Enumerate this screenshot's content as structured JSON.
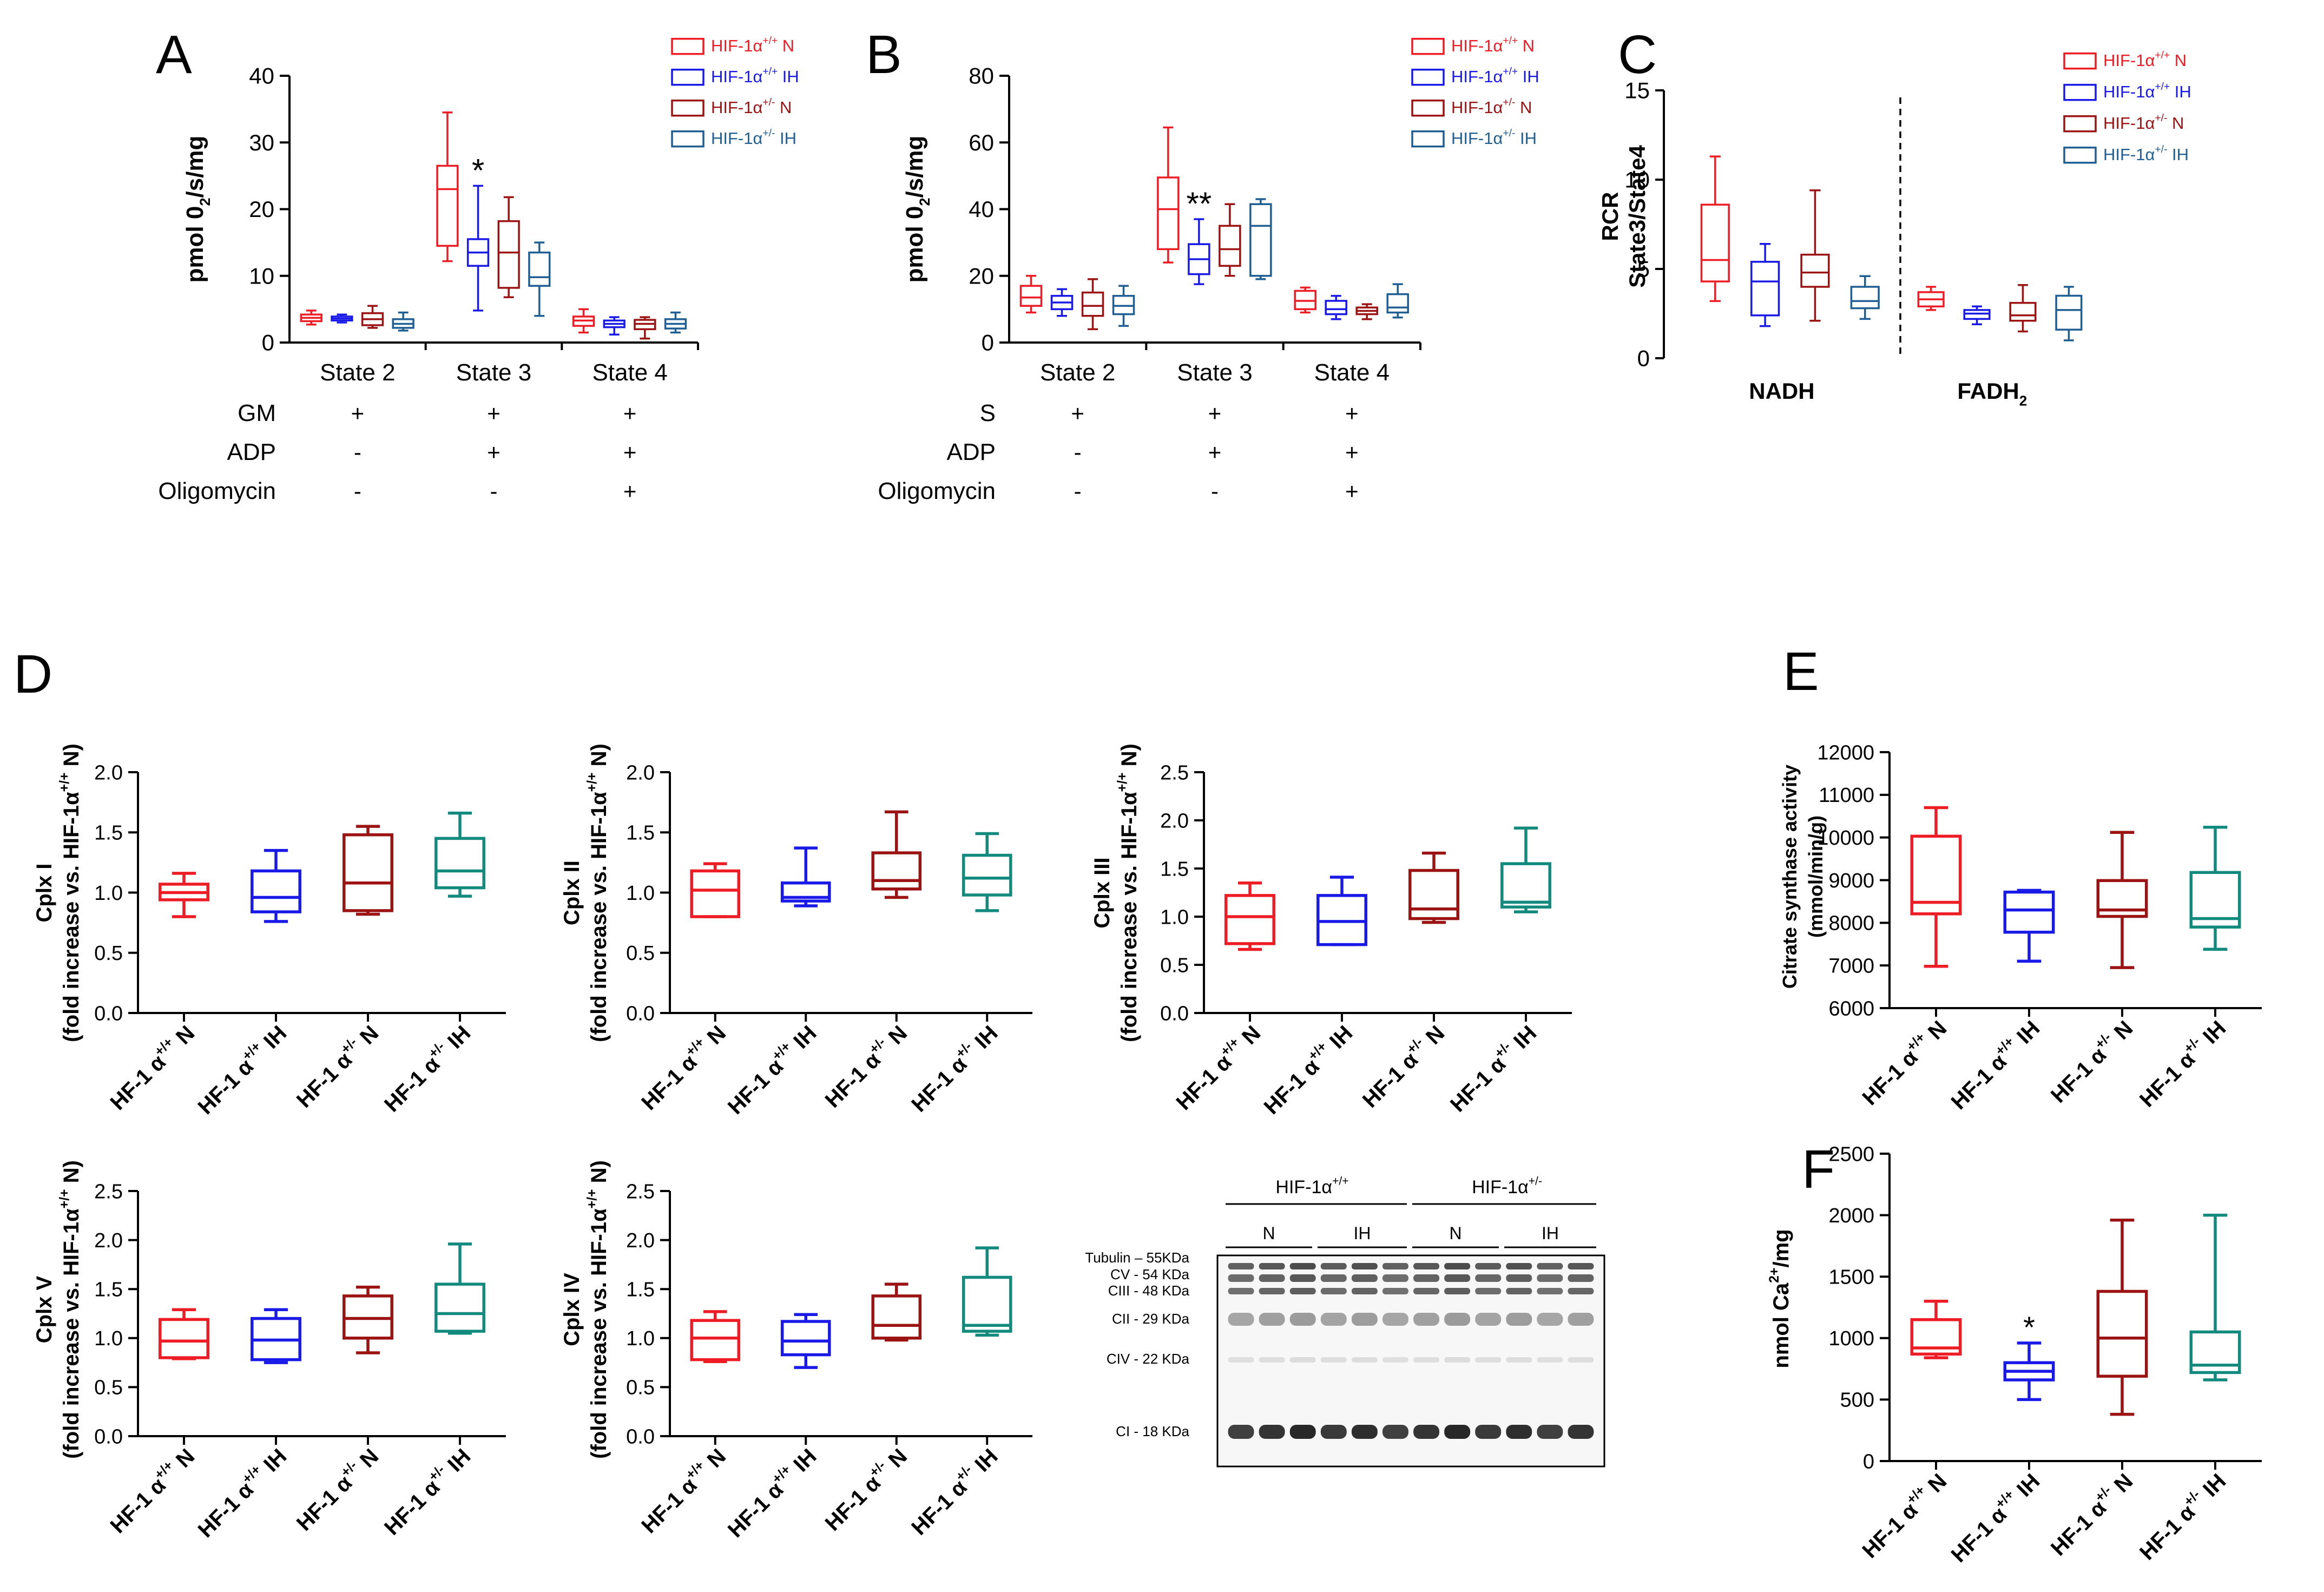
{
  "colors": {
    "wt_n": "#ee1c24",
    "wt_ih": "#1a1ae8",
    "het_n": "#9b1313",
    "het_ih": "#1f5f94",
    "teal": "#128a7e",
    "axis": "#000000"
  },
  "legend_top": [
    "HIF-1α+/+ N",
    "HIF-1α+/+ IH",
    "HIF-1α+/- N",
    "HIF-1α+/- IH"
  ],
  "legend_top_parts": [
    [
      "HIF-1α",
      "+/+",
      " N"
    ],
    [
      "HIF-1α",
      "+/+",
      " IH"
    ],
    [
      "HIF-1α",
      "+/-",
      "  N"
    ],
    [
      "HIF-1α",
      "+/-",
      "  IH"
    ]
  ],
  "treat_A": {
    "rows": [
      {
        "label": "GM",
        "values": [
          "+",
          "+",
          "+"
        ]
      },
      {
        "label": "ADP",
        "values": [
          "-",
          "+",
          "+"
        ]
      },
      {
        "label": "Oligomycin",
        "values": [
          "-",
          "-",
          "+"
        ]
      }
    ]
  },
  "treat_B": {
    "rows": [
      {
        "label": "S",
        "values": [
          "+",
          "+",
          "+"
        ]
      },
      {
        "label": "ADP",
        "values": [
          "-",
          "+",
          "+"
        ]
      },
      {
        "label": "Oligomycin",
        "values": [
          "-",
          "-",
          "+"
        ]
      }
    ]
  },
  "lower_categories": [
    "HF-1  α+/+ N",
    "HF-1  α+/+ IH",
    "HF-1  α+/- N",
    "HF-1  α+/- IH"
  ],
  "lower_cat_parts": [
    [
      "HF-1  α",
      "+/+",
      " N"
    ],
    [
      "HF-1  α",
      "+/+",
      " IH"
    ],
    [
      "HF-1  α",
      "+/-",
      " N"
    ],
    [
      "HF-1  α",
      "+/-",
      " IH"
    ]
  ],
  "fold_ylabel": [
    "(fold increase vs. HIF-1α",
    "+/+",
    " N)"
  ],
  "western": {
    "header_groups": [
      [
        "HIF-1α",
        "+/+"
      ],
      [
        "HIF-1α",
        "+/-"
      ]
    ],
    "sublabels": [
      "N",
      "IH",
      "N",
      "IH"
    ],
    "bands": [
      "Tubulin – 55KDa",
      "CV - 54 KDa",
      "CIII - 48 KDa",
      "CII - 29 KDa",
      "CIV - 22 KDa",
      "CI - 18 KDa"
    ]
  },
  "chart_data": [
    {
      "panel": "A",
      "type": "box",
      "ylabel": "pmol 02/s/mg",
      "ylabel_parts": [
        "pmol 0",
        "2",
        "/s/mg"
      ],
      "ylim": [
        0,
        40
      ],
      "yticks": [
        0,
        10,
        20,
        30,
        40
      ],
      "categories": [
        "State 2",
        "State 3",
        "State 4"
      ],
      "annotations": [
        {
          "text": "*",
          "category": 1,
          "series": 1
        }
      ],
      "series": [
        {
          "name": "HIF-1α+/+ N",
          "color": "#ee1c24",
          "boxes": [
            [
              2.7,
              3.2,
              3.7,
              4.2,
              4.8
            ],
            [
              12.2,
              14.5,
              23,
              26.5,
              34.5
            ],
            [
              1.5,
              2.5,
              3.3,
              3.9,
              5
            ]
          ]
        },
        {
          "name": "HIF-1α+/+ IH",
          "color": "#1a1ae8",
          "boxes": [
            [
              3.0,
              3.3,
              3.6,
              3.9,
              4.2
            ],
            [
              4.8,
              11.5,
              13.5,
              15.5,
              23.5
            ],
            [
              1.2,
              2.3,
              2.8,
              3.3,
              3.8
            ]
          ]
        },
        {
          "name": "HIF-1α+/- N",
          "color": "#9b1313",
          "boxes": [
            [
              2.2,
              2.6,
              3.5,
              4.4,
              5.5
            ],
            [
              6.8,
              8.2,
              13.5,
              18.2,
              21.8
            ],
            [
              0.6,
              2.0,
              2.8,
              3.4,
              3.8
            ]
          ]
        },
        {
          "name": "HIF-1α+/- IH",
          "color": "#1f5f94",
          "boxes": [
            [
              1.8,
              2.2,
              2.8,
              3.5,
              4.5
            ],
            [
              4,
              8.5,
              9.8,
              13.5,
              15
            ],
            [
              1.5,
              2.1,
              2.8,
              3.5,
              4.5
            ]
          ]
        }
      ]
    },
    {
      "panel": "B",
      "type": "box",
      "ylabel": "pmol 02/s/mg",
      "ylabel_parts": [
        "pmol 0",
        "2",
        "/s/mg"
      ],
      "ylim": [
        0,
        80
      ],
      "yticks": [
        0,
        20,
        40,
        60,
        80
      ],
      "categories": [
        "State 2",
        "State 3",
        "State 4"
      ],
      "annotations": [
        {
          "text": "**",
          "category": 1,
          "series": 1
        }
      ],
      "series": [
        {
          "name": "HIF-1α+/+ N",
          "color": "#ee1c24",
          "boxes": [
            [
              9,
              11,
              13.5,
              17,
              20
            ],
            [
              24,
              28,
              40,
              49.5,
              64.5
            ],
            [
              9,
              10,
              12.5,
              15.5,
              16.5
            ]
          ]
        },
        {
          "name": "HIF-1α+/+ IH",
          "color": "#1a1ae8",
          "boxes": [
            [
              8,
              10,
              12,
              14,
              16
            ],
            [
              17.5,
              20.5,
              25,
              29.5,
              37
            ],
            [
              7,
              8.5,
              10,
              12.5,
              14
            ]
          ]
        },
        {
          "name": "HIF-1α+/- N",
          "color": "#9b1313",
          "boxes": [
            [
              4,
              8,
              11,
              15,
              19
            ],
            [
              20,
              23,
              28,
              35,
              41.5
            ],
            [
              7,
              8.5,
              9.5,
              10.5,
              11.5
            ]
          ]
        },
        {
          "name": "HIF-1α+/- IH",
          "color": "#1f5f94",
          "boxes": [
            [
              5,
              8.5,
              11,
              14,
              17
            ],
            [
              19,
              20,
              35,
              41.5,
              43
            ],
            [
              7.5,
              9,
              10.5,
              14.5,
              17.5
            ]
          ]
        }
      ]
    },
    {
      "panel": "C",
      "type": "box",
      "ylabel": "RCR State3/State4",
      "ylabel_lines": [
        "RCR",
        "State3/State4"
      ],
      "ylim": [
        0,
        15
      ],
      "yticks": [
        0,
        5,
        10,
        15
      ],
      "categories": [
        "NADH",
        "FADH2"
      ],
      "category_parts": [
        [
          "NADH",
          ""
        ],
        [
          "FADH",
          "2"
        ]
      ],
      "series": [
        {
          "name": "HIF-1α+/+ N",
          "color": "#ee1c24",
          "boxes": [
            [
              3.2,
              4.3,
              5.5,
              8.6,
              11.3
            ],
            [
              2.7,
              2.9,
              3.3,
              3.7,
              4.0
            ]
          ]
        },
        {
          "name": "HIF-1α+/+ IH",
          "color": "#1a1ae8",
          "boxes": [
            [
              1.8,
              2.4,
              4.3,
              5.4,
              6.4
            ],
            [
              1.9,
              2.2,
              2.5,
              2.7,
              2.9
            ]
          ]
        },
        {
          "name": "HIF-1α+/- N",
          "color": "#9b1313",
          "boxes": [
            [
              2.1,
              4.0,
              4.8,
              5.8,
              9.4
            ],
            [
              1.5,
              2.1,
              2.4,
              3.1,
              4.1
            ]
          ]
        },
        {
          "name": "HIF-1α+/- IH",
          "color": "#1f5f94",
          "boxes": [
            [
              2.2,
              2.8,
              3.2,
              4.0,
              4.6
            ],
            [
              1.0,
              1.6,
              2.7,
              3.5,
              4.0
            ]
          ]
        }
      ]
    },
    {
      "panel": "D1",
      "type": "box",
      "ylabel": "Cplx I",
      "ylim": [
        0,
        2.0
      ],
      "yticks": [
        0.0,
        0.5,
        1.0,
        1.5,
        2.0
      ],
      "categories": [
        "HF-1  α+/+ N",
        "HF-1  α+/+ IH",
        "HF-1  α+/- N",
        "HF-1  α+/- IH"
      ],
      "boxes": [
        [
          0.8,
          0.94,
          1.0,
          1.07,
          1.16
        ],
        [
          0.76,
          0.84,
          0.96,
          1.18,
          1.35
        ],
        [
          0.82,
          0.85,
          1.08,
          1.48,
          1.55
        ],
        [
          0.97,
          1.04,
          1.18,
          1.45,
          1.66
        ]
      ]
    },
    {
      "panel": "D2",
      "type": "box",
      "ylabel": "Cplx II",
      "ylim": [
        0,
        2.0
      ],
      "yticks": [
        0.0,
        0.5,
        1.0,
        1.5,
        2.0
      ],
      "categories": [
        "HF-1  α+/+ N",
        "HF-1  α+/+ IH",
        "HF-1  α+/- N",
        "HF-1  α+/- IH"
      ],
      "boxes": [
        [
          0.8,
          0.8,
          1.02,
          1.18,
          1.24
        ],
        [
          0.89,
          0.93,
          0.96,
          1.08,
          1.37
        ],
        [
          0.96,
          1.03,
          1.1,
          1.33,
          1.67
        ],
        [
          0.85,
          0.98,
          1.12,
          1.31,
          1.49
        ]
      ]
    },
    {
      "panel": "D3",
      "type": "box",
      "ylabel": "Cplx III",
      "ylim": [
        0,
        2.5
      ],
      "yticks": [
        0.0,
        0.5,
        1.0,
        1.5,
        2.0,
        2.5
      ],
      "categories": [
        "HF-1  α+/+ N",
        "HF-1  α+/+ IH",
        "HF-1  α+/- N",
        "HF-1  α+/- IH"
      ],
      "boxes": [
        [
          0.66,
          0.72,
          1.0,
          1.22,
          1.35
        ],
        [
          0.71,
          0.71,
          0.95,
          1.22,
          1.41
        ],
        [
          0.94,
          0.98,
          1.08,
          1.48,
          1.66
        ],
        [
          1.05,
          1.1,
          1.15,
          1.55,
          1.92
        ]
      ]
    },
    {
      "panel": "D4",
      "type": "box",
      "ylabel": "Cplx V",
      "ylim": [
        0,
        2.5
      ],
      "yticks": [
        0.0,
        0.5,
        1.0,
        1.5,
        2.0,
        2.5
      ],
      "categories": [
        "HF-1  α+/+ N",
        "HF-1  α+/+ IH",
        "HF-1  α+/- N",
        "HF-1  α+/- IH"
      ],
      "boxes": [
        [
          0.79,
          0.8,
          0.97,
          1.19,
          1.29
        ],
        [
          0.75,
          0.78,
          0.98,
          1.2,
          1.29
        ],
        [
          0.85,
          1.0,
          1.2,
          1.43,
          1.52
        ],
        [
          1.05,
          1.07,
          1.25,
          1.55,
          1.96
        ]
      ]
    },
    {
      "panel": "D5",
      "type": "box",
      "ylabel": "Cplx IV",
      "ylim": [
        0,
        2.5
      ],
      "yticks": [
        0.0,
        0.5,
        1.0,
        1.5,
        2.0,
        2.5
      ],
      "categories": [
        "HF-1  α+/+ N",
        "HF-1  α+/+ IH",
        "HF-1  α+/- N",
        "HF-1  α+/- IH"
      ],
      "boxes": [
        [
          0.76,
          0.78,
          1.0,
          1.18,
          1.27
        ],
        [
          0.7,
          0.83,
          0.97,
          1.17,
          1.24
        ],
        [
          0.98,
          1.0,
          1.13,
          1.43,
          1.55
        ],
        [
          1.03,
          1.07,
          1.13,
          1.62,
          1.92
        ]
      ]
    },
    {
      "panel": "E",
      "type": "box",
      "ylabel": "Citrate synthase activity (mmol/min/g)",
      "ylabel_lines": [
        "Citrate synthase activity",
        "(mmol/min/g)"
      ],
      "ylim": [
        6000,
        12000
      ],
      "yticks": [
        6000,
        7000,
        8000,
        9000,
        10000,
        11000,
        12000
      ],
      "categories": [
        "HF-1  α+/+ N",
        "HF-1  α+/+ IH",
        "HF-1  α+/- N",
        "HF-1  α+/- IH"
      ],
      "boxes": [
        [
          6980,
          8210,
          8480,
          10030,
          10700
        ],
        [
          7100,
          7780,
          8300,
          8720,
          8760
        ],
        [
          6950,
          8150,
          8300,
          8990,
          10120
        ],
        [
          7380,
          7900,
          8100,
          9180,
          10240
        ]
      ]
    },
    {
      "panel": "F",
      "type": "box",
      "ylabel": "nmol Ca2+/mg",
      "ylabel_parts": [
        "nmol Ca",
        "2+",
        "/mg"
      ],
      "ylim": [
        0,
        2500
      ],
      "yticks": [
        0,
        500,
        1000,
        1500,
        2000,
        2500
      ],
      "categories": [
        "HF-1  α+/+ N",
        "HF-1  α+/+ IH",
        "HF-1  α+/- N",
        "HF-1  α+/- IH"
      ],
      "annotations": [
        {
          "text": "*",
          "category": 1
        }
      ],
      "boxes": [
        [
          840,
          870,
          920,
          1150,
          1300
        ],
        [
          500,
          660,
          730,
          800,
          960
        ],
        [
          380,
          690,
          1000,
          1380,
          1960
        ],
        [
          660,
          720,
          780,
          1050,
          2000
        ]
      ]
    }
  ],
  "panel_letters": [
    "A",
    "B",
    "C",
    "D",
    "E",
    "F"
  ]
}
